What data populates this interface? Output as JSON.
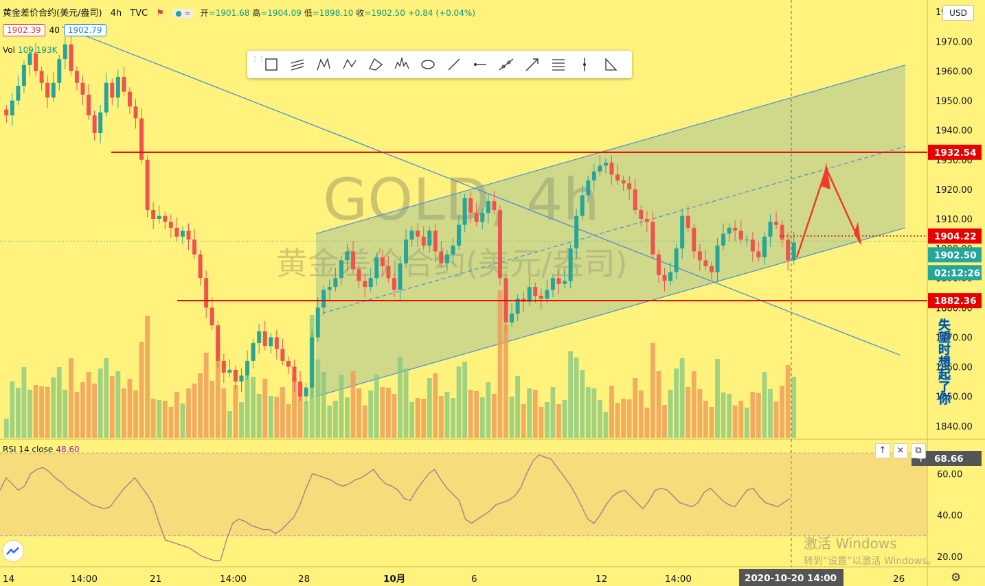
{
  "header": {
    "symbol": "黄金差价合约(美元/盎司)",
    "interval": "4h",
    "source": "TVC",
    "open_label": "开",
    "open": "=1901.68",
    "high_label": "高",
    "high": "=1904.09",
    "low_label": "低",
    "low": "=1898.10",
    "close_label": "收",
    "close": "=1902.50",
    "change": "+0.84 (+0.04%)",
    "bid": "1902.39",
    "spread": "40",
    "ask": "1902.79"
  },
  "volume": {
    "label": "Vol",
    "value": "109.193K"
  },
  "rsi": {
    "label": "RSI 14 close",
    "value": "48.60",
    "upper_readout": "68.66"
  },
  "currency": "USD",
  "watermark": {
    "main": "GOLD, 4h",
    "sub": "黄金差价合约(美元/盎司)"
  },
  "windows_notice": {
    "line1": "激活 Windows",
    "line2": "转到“设置”以激活 Windows。"
  },
  "side_text": "失望时想起了你",
  "toolbar_tools": [
    "rectangle-tool-icon",
    "parallel-channel-icon",
    "xabcd-pattern-icon",
    "abcd-pattern-icon",
    "triangle-pattern-icon",
    "head-shoulders-icon",
    "ellipse-tool-icon",
    "trend-line-icon",
    "horizontal-ray-icon",
    "extended-line-icon",
    "arrow-line-icon",
    "fib-retracement-icon",
    "vertical-line-icon",
    "long-position-icon"
  ],
  "controls": {
    "up": "↑",
    "close": "×",
    "restore": "⧉"
  },
  "colors": {
    "background": "#fff27d",
    "up": "#26a69a",
    "down": "#ef5350",
    "level": "#e60000",
    "channel": "#4a90d9",
    "rsi": "#b5708a"
  },
  "chart_data": {
    "type": "candlestick",
    "price_axis": {
      "ticks": [
        "1980.00",
        "1970.00",
        "1960.00",
        "1950.00",
        "1940.00",
        "1930.00",
        "1920.00",
        "1910.00",
        "1900.00",
        "1890.00",
        "1880.00",
        "1870.00",
        "1860.00",
        "1850.00",
        "1840.00"
      ],
      "ylim": [
        1836,
        1984
      ]
    },
    "time_axis": {
      "ticks": [
        "14",
        "14:00",
        "21",
        "14:00",
        "28",
        "10月",
        "6",
        "12",
        "14:00",
        "26"
      ],
      "crosshair_label": "2020-10-20   14:00"
    },
    "price_labels": [
      {
        "value": "1932.54",
        "kind": "level"
      },
      {
        "value": "1904.22",
        "kind": "level"
      },
      {
        "value": "1902.50",
        "kind": "last"
      },
      {
        "value": "02:12:26",
        "kind": "countdown"
      },
      {
        "value": "1882.36",
        "kind": "level"
      }
    ],
    "horizontal_levels": [
      1932.54,
      1882.36
    ],
    "dotted_level": 1904.22,
    "ohlc_approx_closes": [
      1945,
      1950,
      1955,
      1962,
      1966,
      1960,
      1956,
      1951,
      1956,
      1964,
      1969,
      1960,
      1956,
      1952,
      1945,
      1939,
      1946,
      1956,
      1951,
      1958,
      1953,
      1948,
      1944,
      1930,
      1913,
      1910,
      1911,
      1909,
      1907,
      1904,
      1906,
      1903,
      1898,
      1890,
      1880,
      1874,
      1862,
      1858,
      1859,
      1855,
      1857,
      1862,
      1868,
      1872,
      1867,
      1870,
      1866,
      1862,
      1860,
      1855,
      1850,
      1853,
      1870,
      1880,
      1886,
      1887,
      1890,
      1896,
      1899,
      1893,
      1889,
      1887,
      1890,
      1897,
      1894,
      1890,
      1886,
      1895,
      1903,
      1906,
      1904,
      1901,
      1906,
      1899,
      1895,
      1898,
      1901,
      1908,
      1917,
      1912,
      1909,
      1912,
      1916,
      1913,
      1890,
      1875,
      1878,
      1883,
      1882,
      1887,
      1884,
      1883,
      1886,
      1890,
      1888,
      1889,
      1900,
      1911,
      1918,
      1923,
      1926,
      1928,
      1929,
      1925,
      1923,
      1922,
      1920,
      1913,
      1910,
      1909,
      1898,
      1891,
      1889,
      1892,
      1900,
      1911,
      1907,
      1899,
      1896,
      1894,
      1892,
      1901,
      1905,
      1907,
      1906,
      1903,
      1903,
      1899,
      1897,
      1904,
      1909,
      1908,
      1903,
      1896,
      1902
    ],
    "rsi_series": [
      52,
      58,
      55,
      52,
      54,
      60,
      62,
      63,
      61,
      58,
      56,
      53,
      51,
      49,
      47,
      45,
      44,
      43,
      44,
      48,
      52,
      55,
      58,
      54,
      50,
      45,
      36,
      28,
      27,
      26,
      25,
      24,
      22,
      20,
      19,
      18,
      18,
      28,
      36,
      38,
      37,
      35,
      34,
      33,
      33,
      31,
      33,
      36,
      39,
      45,
      53,
      60,
      59,
      58,
      57,
      55,
      54,
      55,
      57,
      58,
      60,
      62,
      58,
      55,
      54,
      52,
      48,
      47,
      52,
      56,
      60,
      62,
      57,
      53,
      50,
      47,
      38,
      36,
      38,
      40,
      42,
      45,
      46,
      47,
      49,
      53,
      60,
      66,
      69,
      68,
      67,
      63,
      59,
      55,
      50,
      44,
      38,
      36,
      40,
      45,
      49,
      51,
      52,
      49,
      46,
      43,
      47,
      52,
      53,
      52,
      49,
      46,
      45,
      44,
      46,
      51,
      53,
      50,
      47,
      45,
      44,
      48,
      52,
      53,
      49,
      46,
      45,
      44,
      46,
      48
    ],
    "rsi_axis": {
      "ticks": [
        "60.00",
        "40.00",
        "20.00"
      ],
      "ylim": [
        15,
        75
      ],
      "bands": [
        70,
        30
      ]
    }
  }
}
